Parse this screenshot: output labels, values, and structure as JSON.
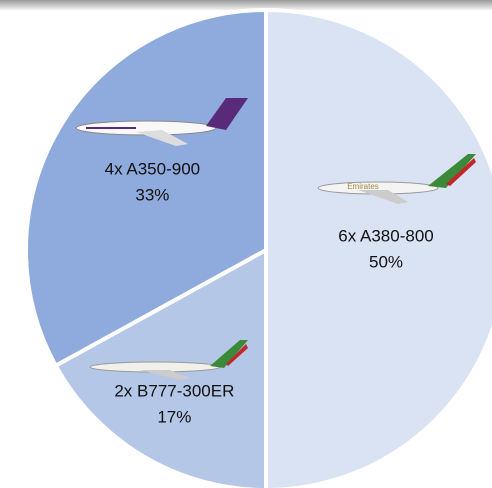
{
  "chart_data": {
    "type": "pie",
    "categories": [
      "6x A380-800",
      "2x B777-300ER",
      "4x A350-900"
    ],
    "values": [
      50,
      17,
      33
    ],
    "value_labels": [
      "50%",
      "17%",
      "33%"
    ],
    "colors": [
      "#dae3f3",
      "#b4c7e7",
      "#8faadc"
    ]
  }
}
